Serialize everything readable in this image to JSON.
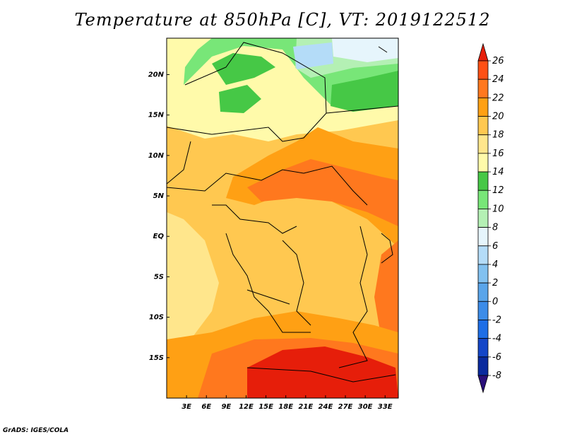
{
  "title": "Temperature at 850hPa [C], VT: 2019122512",
  "credit": "GrADS: IGES/COLA",
  "map": {
    "lon_range": [
      0,
      35
    ],
    "lat_range": [
      -20,
      24.5
    ],
    "lon_ticks": [
      {
        "value": 3,
        "label": "3E"
      },
      {
        "value": 6,
        "label": "6E"
      },
      {
        "value": 9,
        "label": "9E"
      },
      {
        "value": 12,
        "label": "12E"
      },
      {
        "value": 15,
        "label": "15E"
      },
      {
        "value": 18,
        "label": "18E"
      },
      {
        "value": 21,
        "label": "21E"
      },
      {
        "value": 24,
        "label": "24E"
      },
      {
        "value": 27,
        "label": "27E"
      },
      {
        "value": 30,
        "label": "30E"
      },
      {
        "value": 33,
        "label": "33E"
      }
    ],
    "lat_ticks": [
      {
        "value": 20,
        "label": "20N"
      },
      {
        "value": 15,
        "label": "15N"
      },
      {
        "value": 10,
        "label": "10N"
      },
      {
        "value": 5,
        "label": "5N"
      },
      {
        "value": 0,
        "label": "EQ"
      },
      {
        "value": -5,
        "label": "5S"
      },
      {
        "value": -10,
        "label": "10S"
      },
      {
        "value": -15,
        "label": "15S"
      }
    ]
  },
  "colorbar": {
    "labels": [
      "26",
      "24",
      "22",
      "20",
      "18",
      "16",
      "14",
      "12",
      "10",
      "8",
      "6",
      "4",
      "2",
      "0",
      "-2",
      "-4",
      "-6",
      "-8"
    ],
    "colors": [
      "#2a0f7a",
      "#0a2a9e",
      "#1446c8",
      "#1e6ee6",
      "#3c8ce8",
      "#5aa5ea",
      "#82c1f0",
      "#b4dcf8",
      "#e6f5fc",
      "#b4f0b4",
      "#78e678",
      "#46c846",
      "#fffaaa",
      "#ffe68c",
      "#ffc850",
      "#ffa014",
      "#ff781e",
      "#ff5014",
      "#e61e0a"
    ]
  }
}
